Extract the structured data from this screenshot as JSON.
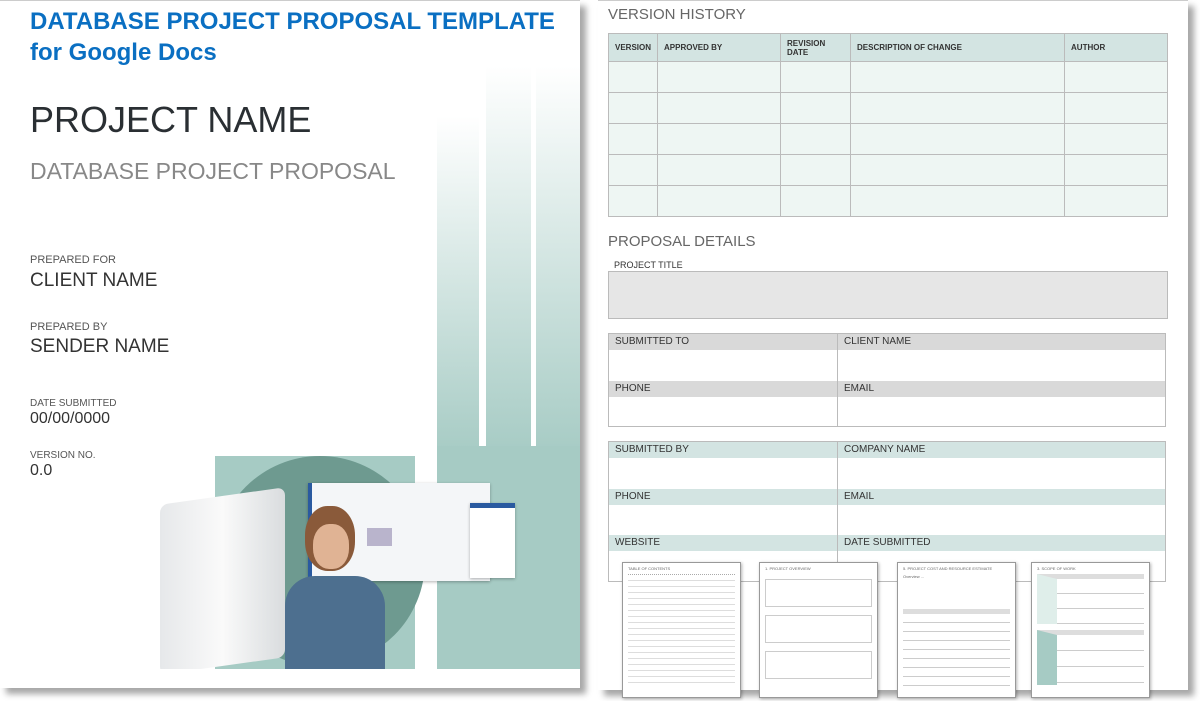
{
  "banner": {
    "line1": "DATABASE PROJECT PROPOSAL TEMPLATE",
    "line2": "for Google Docs"
  },
  "cover": {
    "project_name": "PROJECT NAME",
    "subtitle": "DATABASE PROJECT PROPOSAL",
    "prepared_for_label": "PREPARED FOR",
    "prepared_for": "CLIENT NAME",
    "prepared_by_label": "PREPARED BY",
    "prepared_by": "SENDER NAME",
    "date_label": "DATE SUBMITTED",
    "date": "00/00/0000",
    "version_label": "VERSION NO.",
    "version": "0.0"
  },
  "version_history": {
    "title": "VERSION HISTORY",
    "headers": [
      "VERSION",
      "APPROVED BY",
      "REVISION DATE",
      "DESCRIPTION OF CHANGE",
      "AUTHOR"
    ],
    "row_count": 5
  },
  "proposal_details": {
    "title": "PROPOSAL DETAILS",
    "project_title_label": "PROJECT TITLE",
    "submitted_to": "SUBMITTED TO",
    "client_name": "CLIENT NAME",
    "phone": "PHONE",
    "email": "EMAIL",
    "submitted_by": "SUBMITTED BY",
    "company_name": "COMPANY NAME",
    "website": "WEBSITE",
    "date_submitted": "DATE SUBMITTED"
  },
  "thumbnails": [
    {
      "title": "TABLE OF CONTENTS"
    },
    {
      "title": "1. PROJECT OVERVIEW"
    },
    {
      "title": "5. PROJECT COST AND RESOURCE ESTIMATE",
      "overview": "Overview ..."
    },
    {
      "title": "3. SCOPE OF WORK"
    }
  ],
  "colors": {
    "brand_blue": "#0a6fc2",
    "teal_header": "#d3e4e2",
    "teal_cell": "#eef6f3",
    "gray_header": "#d9d9d9",
    "teal_dark": "#6e9a90",
    "teal_light": "#a6cbc4"
  }
}
